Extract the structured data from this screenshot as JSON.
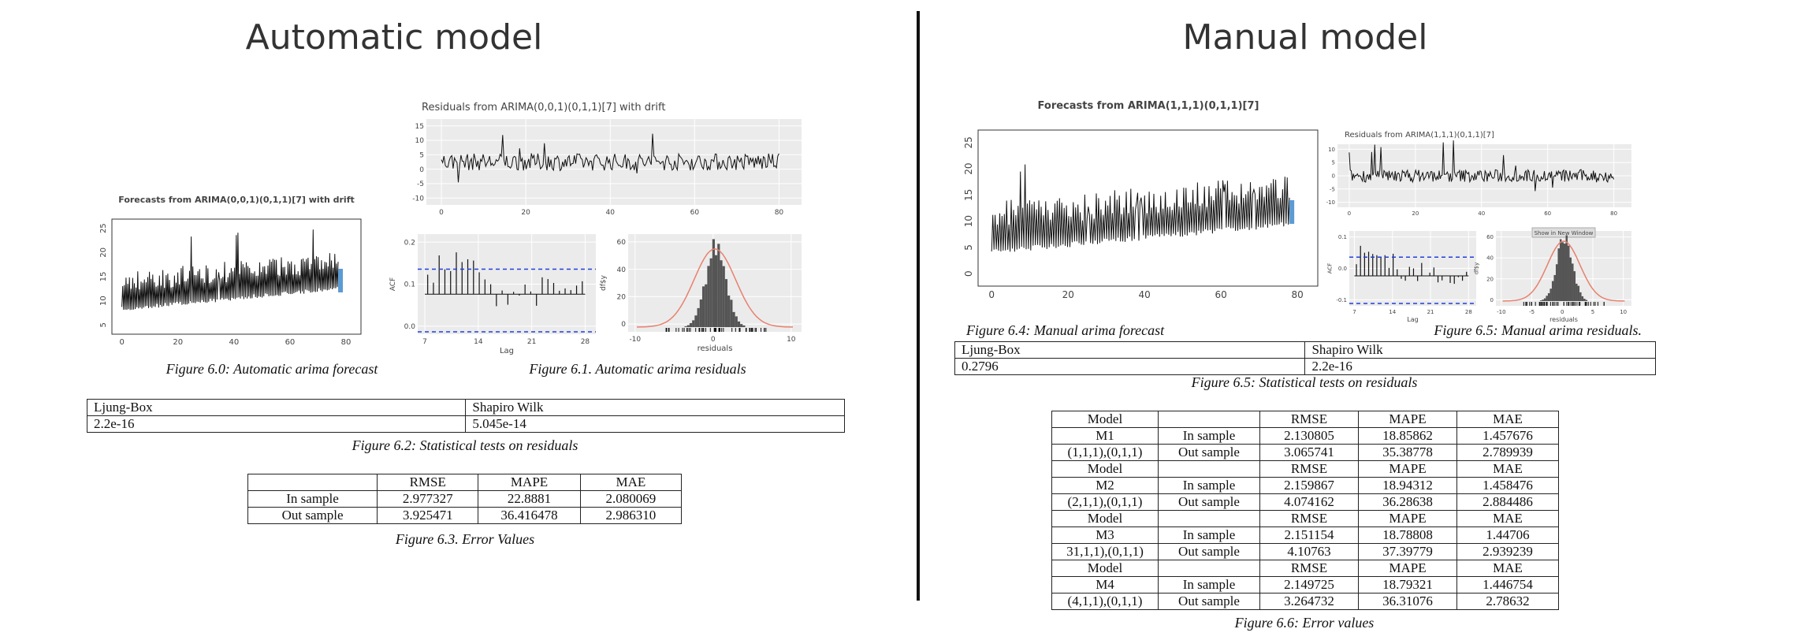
{
  "left": {
    "title": "Automatic model",
    "forecast_plot": {
      "title": "Forecasts from ARIMA(0,0,1)(0,1,1)[7] with drift",
      "yticks": [
        "5",
        "10",
        "15",
        "20",
        "25"
      ],
      "xticks": [
        "0",
        "20",
        "40",
        "60",
        "80"
      ]
    },
    "residual_plot": {
      "title": "Residuals from ARIMA(0,0,1)(0,1,1)[7] with drift",
      "yticks": [
        "-10",
        "-5",
        "0",
        "5",
        "10",
        "15"
      ],
      "xticks": [
        "0",
        "20",
        "40",
        "60",
        "80"
      ]
    },
    "acf_plot": {
      "ylabel": "ACF",
      "xlabel": "Lag",
      "yticks": [
        "0.0",
        "0.1",
        "0.2"
      ],
      "xticks": [
        "7",
        "14",
        "21",
        "28"
      ]
    },
    "hist_plot": {
      "ylabel": "df$y",
      "xlabel": "residuals",
      "yticks": [
        "0",
        "20",
        "40",
        "60"
      ],
      "xticks": [
        "-10",
        "0",
        "10"
      ]
    },
    "forecast_caption": "Figure 6.0: Automatic arima forecast",
    "residual_caption": "Figure 6.1. Automatic arima residuals",
    "tests_table": {
      "header": [
        "Ljung-Box",
        "Shapiro Wilk"
      ],
      "row": [
        "2.2e-16",
        "5.045e-14"
      ]
    },
    "tests_caption": "Figure 6.2: Statistical tests on residuals",
    "error_table": {
      "rows": [
        [
          null,
          "RMSE",
          "MAPE",
          "MAE"
        ],
        [
          "In sample",
          "2.977327",
          "22.8881",
          "2.080069"
        ],
        [
          "Out sample",
          "3.925471",
          "36.416478",
          "2.986310"
        ]
      ]
    },
    "error_caption": "Figure 6.3. Error Values"
  },
  "right": {
    "title": "Manual model",
    "forecast_plot": {
      "title": "Forecasts from ARIMA(1,1,1)(0,1,1)[7]",
      "yticks": [
        "0",
        "5",
        "10",
        "15",
        "20",
        "25"
      ],
      "xticks": [
        "0",
        "20",
        "40",
        "60",
        "80"
      ]
    },
    "residual_plot": {
      "title": "Residuals from ARIMA(1,1,1)(0,1,1)[7]",
      "yticks": [
        "-10",
        "-5",
        "0",
        "5",
        "10"
      ],
      "xticks": [
        "0",
        "20",
        "40",
        "60",
        "80"
      ]
    },
    "acf_plot": {
      "ylabel": "ACF",
      "xlabel": "Lag",
      "yticks": [
        "-0.1",
        "0.0",
        "0.1"
      ],
      "xticks": [
        "7",
        "14",
        "21",
        "28"
      ]
    },
    "hist_plot": {
      "ylabel": "df$y",
      "xlabel": "residuals",
      "yticks": [
        "0",
        "20",
        "40",
        "60"
      ],
      "xticks": [
        "-10",
        "-5",
        "0",
        "5",
        "10"
      ],
      "tooltip": "Show in New Window"
    },
    "forecast_caption": "Figure 6.4: Manual arima forecast",
    "residual_caption": "Figure 6.5: Manual arima residuals.",
    "tests_table": {
      "header": [
        "Ljung-Box",
        "Shapiro Wilk"
      ],
      "row": [
        "0.2796",
        "2.2e-16"
      ]
    },
    "tests_caption": "Figure 6.5: Statistical tests on residuals",
    "error_table": {
      "rows": [
        [
          "Model",
          null,
          "RMSE",
          "MAPE",
          "MAE"
        ],
        [
          "M1",
          "In sample",
          "2.130805",
          "18.85862",
          "1.457676"
        ],
        [
          "(1,1,1),(0,1,1)",
          "Out sample",
          "3.065741",
          "35.38778",
          "2.789939"
        ],
        [
          "Model",
          null,
          "RMSE",
          "MAPE",
          "MAE"
        ],
        [
          "M2",
          "In sample",
          "2.159867",
          "18.94312",
          "1.458476"
        ],
        [
          "(2,1,1),(0,1,1)",
          "Out sample",
          "4.074162",
          "36.28638",
          "2.884486"
        ],
        [
          "Model",
          null,
          "RMSE",
          "MAPE",
          "MAE"
        ],
        [
          "M3",
          "In sample",
          "2.151154",
          "18.78808",
          "1.44706"
        ],
        [
          "31,1,1),(0,1,1)",
          "Out sample",
          "4.10763",
          "37.39779",
          "2.939239"
        ],
        [
          "Model",
          null,
          "RMSE",
          "MAPE",
          "MAE"
        ],
        [
          "M4",
          "In sample",
          "2.149725",
          "18.79321",
          "1.446754"
        ],
        [
          "(4,1,1),(0,1,1)",
          "Out sample",
          "3.264732",
          "36.31076",
          "2.78632"
        ]
      ]
    },
    "error_caption": "Figure 6.6: Error values"
  }
}
